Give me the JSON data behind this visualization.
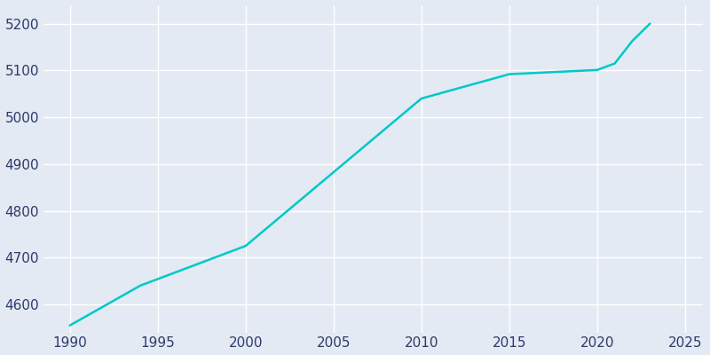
{
  "years": [
    1990,
    1994,
    2000,
    2010,
    2015,
    2020,
    2021,
    2022,
    2023
  ],
  "population": [
    4555,
    4640,
    4725,
    5040,
    5092,
    5101,
    5115,
    5163,
    5200
  ],
  "line_color": "#00C8C8",
  "background_color": "#E3EAF3",
  "text_color": "#2D3A6B",
  "grid_color": "#FFFFFF",
  "xlim": [
    1988.5,
    2026
  ],
  "ylim": [
    4540,
    5240
  ],
  "xticks": [
    1990,
    1995,
    2000,
    2005,
    2010,
    2015,
    2020,
    2025
  ],
  "yticks": [
    4600,
    4700,
    4800,
    4900,
    5000,
    5100,
    5200
  ],
  "line_width": 1.8,
  "figsize": [
    8.0,
    4.0
  ],
  "dpi": 100
}
